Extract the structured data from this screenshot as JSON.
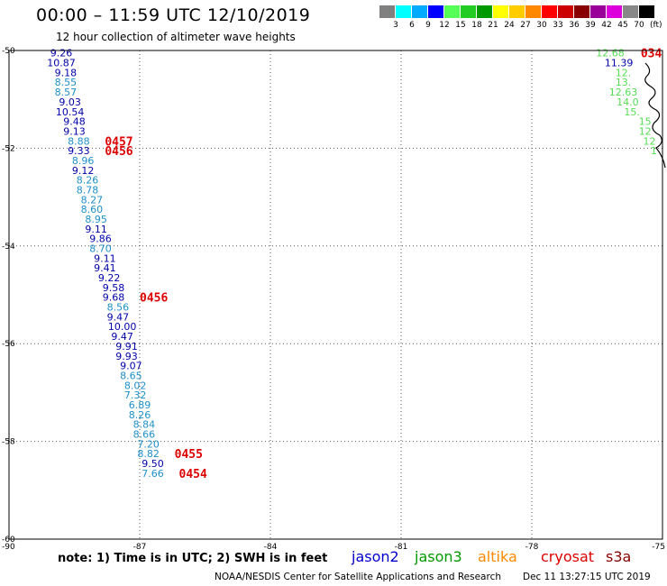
{
  "header": {
    "title": "00:00 – 11:59 UTC 12/10/2019",
    "subtitle": "12 hour collection of altimeter wave heights"
  },
  "color_scale": {
    "colors": [
      "#808080",
      "#00ffff",
      "#00aaff",
      "#0000ff",
      "#55ff55",
      "#22cc22",
      "#009900",
      "#ffff00",
      "#ffcc00",
      "#ff8800",
      "#ff0000",
      "#cc0000",
      "#880000",
      "#990099",
      "#dd00dd",
      "#888888",
      "#000000"
    ],
    "labels": [
      "3",
      "6",
      "9",
      "12",
      "15",
      "18",
      "21",
      "24",
      "27",
      "30",
      "33",
      "36",
      "39",
      "42",
      "45",
      "70"
    ],
    "unit": "(ft)"
  },
  "footer": {
    "note": "note: 1) Time is in UTC; 2) SWH is in feet",
    "satellites": [
      {
        "label": "jason2",
        "color": "#0000cc"
      },
      {
        "label": "jason3",
        "color": "#009900"
      },
      {
        "label": "altika",
        "color": "#ff8800"
      },
      {
        "label": "cryosat",
        "color": "#dd0000"
      },
      {
        "label": "s3a",
        "color": "#880000"
      }
    ],
    "credit": "NOAA/NESDIS Center for Satellite Applications and Research",
    "timestamp": "Dec 11 13:27:15 UTC 2019"
  },
  "chart_data": {
    "type": "scatter",
    "xlim": [
      -90,
      -75
    ],
    "ylim": [
      -60,
      -50
    ],
    "x_ticks": [
      "-90",
      "-87",
      "-84",
      "-81",
      "-78",
      "-75"
    ],
    "y_ticks": [
      "-50",
      "-52",
      "-54",
      "-56",
      "-58",
      "-60"
    ],
    "grid": true,
    "west_track": {
      "points": [
        {
          "x": -88.8,
          "y": -50.05,
          "v": "9.26",
          "c": "#0000aa"
        },
        {
          "x": -88.8,
          "y": -50.25,
          "v": "10.87",
          "c": "#0000aa"
        },
        {
          "x": -88.7,
          "y": -50.45,
          "v": "9.18",
          "c": "#0000aa"
        },
        {
          "x": -88.7,
          "y": -50.65,
          "v": "8.55",
          "c": "#1e90c8"
        },
        {
          "x": -88.7,
          "y": -50.85,
          "v": "8.57",
          "c": "#1e90c8"
        },
        {
          "x": -88.6,
          "y": -51.05,
          "v": "9.03",
          "c": "#0000aa"
        },
        {
          "x": -88.6,
          "y": -51.25,
          "v": "10.54",
          "c": "#0000aa"
        },
        {
          "x": -88.5,
          "y": -51.45,
          "v": "9.48",
          "c": "#0000aa"
        },
        {
          "x": -88.5,
          "y": -51.65,
          "v": "9.13",
          "c": "#0000aa"
        },
        {
          "x": -88.4,
          "y": -51.85,
          "v": "8.88",
          "c": "#1e90c8"
        },
        {
          "x": -88.4,
          "y": -52.05,
          "v": "9.33",
          "c": "#0000aa"
        },
        {
          "x": -88.3,
          "y": -52.25,
          "v": "8.96",
          "c": "#1e90c8"
        },
        {
          "x": -88.3,
          "y": -52.45,
          "v": "9.12",
          "c": "#0000aa"
        },
        {
          "x": -88.2,
          "y": -52.65,
          "v": "8.26",
          "c": "#1e90c8"
        },
        {
          "x": -88.2,
          "y": -52.85,
          "v": "8.78",
          "c": "#1e90c8"
        },
        {
          "x": -88.1,
          "y": -53.05,
          "v": "8.27",
          "c": "#1e90c8"
        },
        {
          "x": -88.1,
          "y": -53.25,
          "v": "8.60",
          "c": "#1e90c8"
        },
        {
          "x": -88.0,
          "y": -53.45,
          "v": "8.95",
          "c": "#1e90c8"
        },
        {
          "x": -88.0,
          "y": -53.65,
          "v": "9.11",
          "c": "#0000aa"
        },
        {
          "x": -87.9,
          "y": -53.85,
          "v": "9.86",
          "c": "#0000aa"
        },
        {
          "x": -87.9,
          "y": -54.05,
          "v": "8.70",
          "c": "#1e90c8"
        },
        {
          "x": -87.8,
          "y": -54.25,
          "v": "9.11",
          "c": "#0000aa"
        },
        {
          "x": -87.8,
          "y": -54.45,
          "v": "9.41",
          "c": "#0000aa"
        },
        {
          "x": -87.7,
          "y": -54.65,
          "v": "9.22",
          "c": "#0000aa"
        },
        {
          "x": -87.6,
          "y": -54.85,
          "v": "9.58",
          "c": "#0000aa"
        },
        {
          "x": -87.6,
          "y": -55.05,
          "v": "9.68",
          "c": "#0000aa"
        },
        {
          "x": -87.5,
          "y": -55.25,
          "v": "8.56",
          "c": "#1e90c8"
        },
        {
          "x": -87.5,
          "y": -55.45,
          "v": "9.47",
          "c": "#0000aa"
        },
        {
          "x": -87.4,
          "y": -55.65,
          "v": "10.00",
          "c": "#0000aa"
        },
        {
          "x": -87.4,
          "y": -55.85,
          "v": "9.47",
          "c": "#0000aa"
        },
        {
          "x": -87.3,
          "y": -56.05,
          "v": "9.91",
          "c": "#0000aa"
        },
        {
          "x": -87.3,
          "y": -56.25,
          "v": "9.93",
          "c": "#0000aa"
        },
        {
          "x": -87.2,
          "y": -56.45,
          "v": "9.07",
          "c": "#0000aa"
        },
        {
          "x": -87.2,
          "y": -56.65,
          "v": "8.65",
          "c": "#1e90c8"
        },
        {
          "x": -87.1,
          "y": -56.85,
          "v": "8.02",
          "c": "#1e90c8"
        },
        {
          "x": -87.1,
          "y": -57.05,
          "v": "7.32",
          "c": "#1e90c8"
        },
        {
          "x": -87.0,
          "y": -57.25,
          "v": "6.89",
          "c": "#1e90c8"
        },
        {
          "x": -87.0,
          "y": -57.45,
          "v": "8.26",
          "c": "#1e90c8"
        },
        {
          "x": -86.9,
          "y": -57.65,
          "v": "8.84",
          "c": "#1e90c8"
        },
        {
          "x": -86.9,
          "y": -57.85,
          "v": "8.66",
          "c": "#1e90c8"
        },
        {
          "x": -86.8,
          "y": -58.05,
          "v": "7.20",
          "c": "#1e90c8"
        },
        {
          "x": -86.8,
          "y": -58.25,
          "v": "8.82",
          "c": "#1e90c8"
        },
        {
          "x": -86.7,
          "y": -58.45,
          "v": "9.50",
          "c": "#0000aa"
        },
        {
          "x": -86.7,
          "y": -58.65,
          "v": "7.66",
          "c": "#1e90c8"
        }
      ],
      "time_labels": [
        {
          "x": -87.8,
          "y": -51.85,
          "t": "0457"
        },
        {
          "x": -87.8,
          "y": -52.05,
          "t": "0456"
        },
        {
          "x": -87.0,
          "y": -55.05,
          "t": "0456"
        },
        {
          "x": -86.2,
          "y": -58.25,
          "t": "0455"
        },
        {
          "x": -86.1,
          "y": -58.65,
          "t": "0454"
        }
      ]
    },
    "east_track": {
      "points": [
        {
          "x": -76.2,
          "y": -50.05,
          "v": "12.68",
          "c": "#55dd55"
        },
        {
          "x": -76.0,
          "y": -50.25,
          "v": "11.39",
          "c": "#0000aa"
        },
        {
          "x": -75.9,
          "y": -50.45,
          "v": "12.",
          "c": "#55dd55"
        },
        {
          "x": -75.9,
          "y": -50.65,
          "v": "13.",
          "c": "#55dd55"
        },
        {
          "x": -75.9,
          "y": -50.85,
          "v": "12.63",
          "c": "#55dd55"
        },
        {
          "x": -75.8,
          "y": -51.05,
          "v": "14.0",
          "c": "#55dd55"
        },
        {
          "x": -75.7,
          "y": -51.25,
          "v": "15.",
          "c": "#55dd55"
        },
        {
          "x": -75.4,
          "y": -51.45,
          "v": "15",
          "c": "#55dd55"
        },
        {
          "x": -75.4,
          "y": -51.65,
          "v": "12",
          "c": "#55dd55"
        },
        {
          "x": -75.3,
          "y": -51.85,
          "v": "12",
          "c": "#55dd55"
        },
        {
          "x": -75.2,
          "y": -52.05,
          "v": "1",
          "c": "#55dd55"
        }
      ],
      "time_labels": [
        {
          "x": -75.5,
          "y": -50.05,
          "t": "034"
        }
      ]
    }
  }
}
